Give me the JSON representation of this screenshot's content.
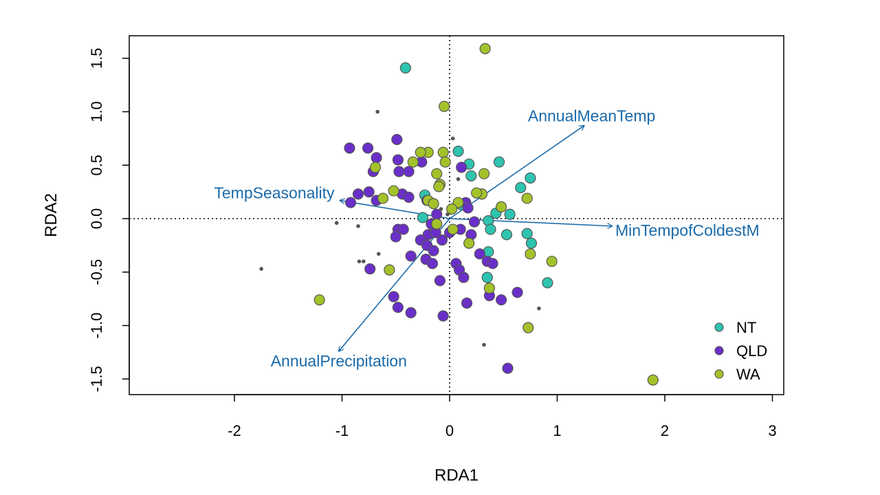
{
  "chart_data": {
    "type": "scatter",
    "subtype": "rda-biplot",
    "title": "",
    "xlabel": "RDA1",
    "ylabel": "RDA2",
    "xlim": [
      -3.0,
      3.1
    ],
    "ylim": [
      -1.65,
      1.72
    ],
    "xticks": [
      -2,
      -1,
      0,
      1,
      2,
      3
    ],
    "yticks": [
      -1.5,
      -1.0,
      -0.5,
      0.0,
      0.5,
      1.0,
      1.5
    ],
    "xtick_labels": [
      "-2",
      "-1",
      "0",
      "1",
      "2",
      "3"
    ],
    "ytick_labels": [
      "-1.5",
      "-1.0",
      "-0.5",
      "0.0",
      "0.5",
      "1.0",
      "1.5"
    ],
    "grid": false,
    "reference_lines": "dotted lines at x=0 and y=0",
    "legend_position": "bottom-right",
    "colors": {
      "NT": "#2ec4b0",
      "QLD": "#6a2fc8",
      "WA": "#a3c22a",
      "vectors": "#1a6aaa",
      "species": "#555555",
      "point_outline": "#555555"
    },
    "series": [
      {
        "name": "NT",
        "points": [
          [
            -0.41,
            1.41
          ],
          [
            0.08,
            0.63
          ],
          [
            0.18,
            0.51
          ],
          [
            0.2,
            0.4
          ],
          [
            0.46,
            0.53
          ],
          [
            0.66,
            0.29
          ],
          [
            0.75,
            0.38
          ],
          [
            -0.23,
            0.22
          ],
          [
            -0.25,
            0.01
          ],
          [
            0.36,
            -0.02
          ],
          [
            0.38,
            -0.1
          ],
          [
            0.43,
            0.05
          ],
          [
            0.56,
            0.04
          ],
          [
            0.53,
            -0.15
          ],
          [
            0.72,
            -0.14
          ],
          [
            0.76,
            -0.23
          ],
          [
            0.36,
            -0.31
          ],
          [
            0.35,
            -0.55
          ],
          [
            0.91,
            -0.6
          ],
          [
            0.11,
            0.13
          ]
        ]
      },
      {
        "name": "QLD",
        "points": [
          [
            -0.93,
            0.66
          ],
          [
            -0.76,
            0.66
          ],
          [
            -0.49,
            0.74
          ],
          [
            -0.68,
            0.57
          ],
          [
            -0.48,
            0.55
          ],
          [
            -0.26,
            0.53
          ],
          [
            -0.47,
            0.44
          ],
          [
            -0.38,
            0.44
          ],
          [
            -0.71,
            0.44
          ],
          [
            0.11,
            0.48
          ],
          [
            -0.85,
            0.23
          ],
          [
            -0.75,
            0.25
          ],
          [
            -0.44,
            0.23
          ],
          [
            -0.68,
            0.17
          ],
          [
            -0.38,
            0.2
          ],
          [
            -0.21,
            0.17
          ],
          [
            -0.12,
            0.04
          ],
          [
            -0.92,
            0.15
          ],
          [
            -0.48,
            -0.1
          ],
          [
            -0.43,
            -0.1
          ],
          [
            -0.5,
            -0.17
          ],
          [
            -0.2,
            -0.15
          ],
          [
            -0.13,
            -0.13
          ],
          [
            -0.07,
            -0.2
          ],
          [
            -0.27,
            -0.2
          ],
          [
            -0.21,
            -0.25
          ],
          [
            -0.15,
            -0.3
          ],
          [
            -0.36,
            -0.35
          ],
          [
            -0.22,
            -0.38
          ],
          [
            -0.16,
            -0.42
          ],
          [
            0.06,
            -0.42
          ],
          [
            0.09,
            -0.48
          ],
          [
            0.13,
            -0.55
          ],
          [
            -0.09,
            -0.58
          ],
          [
            0.0,
            -0.13
          ],
          [
            0.1,
            -0.1
          ],
          [
            0.2,
            -0.15
          ],
          [
            0.23,
            -0.03
          ],
          [
            0.15,
            0.15
          ],
          [
            0.17,
            0.1
          ],
          [
            0.28,
            -0.33
          ],
          [
            0.35,
            -0.4
          ],
          [
            0.4,
            -0.42
          ],
          [
            -0.74,
            -0.47
          ],
          [
            -0.52,
            -0.73
          ],
          [
            -0.48,
            -0.83
          ],
          [
            -0.36,
            -0.88
          ],
          [
            -0.06,
            -0.91
          ],
          [
            0.37,
            -0.72
          ],
          [
            0.48,
            -0.76
          ],
          [
            0.63,
            -0.69
          ],
          [
            0.54,
            -1.4
          ],
          [
            0.16,
            -0.79
          ],
          [
            -0.17,
            -0.05
          ]
        ]
      },
      {
        "name": "WA",
        "points": [
          [
            0.33,
            1.59
          ],
          [
            -0.05,
            1.05
          ],
          [
            -0.2,
            0.62
          ],
          [
            -0.06,
            0.62
          ],
          [
            -0.04,
            0.53
          ],
          [
            -0.34,
            0.53
          ],
          [
            -0.69,
            0.48
          ],
          [
            -0.12,
            0.42
          ],
          [
            -0.09,
            0.32
          ],
          [
            -0.1,
            0.3
          ],
          [
            0.32,
            0.42
          ],
          [
            -0.52,
            0.26
          ],
          [
            -0.62,
            0.19
          ],
          [
            -0.2,
            0.17
          ],
          [
            -0.15,
            0.14
          ],
          [
            0.08,
            0.15
          ],
          [
            0.3,
            0.23
          ],
          [
            0.25,
            0.24
          ],
          [
            0.72,
            0.19
          ],
          [
            0.48,
            0.11
          ],
          [
            0.02,
            0.09
          ],
          [
            -0.12,
            -0.05
          ],
          [
            0.03,
            -0.1
          ],
          [
            0.18,
            -0.23
          ],
          [
            -0.56,
            -0.48
          ],
          [
            0.37,
            -0.65
          ],
          [
            0.75,
            -0.33
          ],
          [
            0.95,
            -0.4
          ],
          [
            0.73,
            -1.02
          ],
          [
            -1.21,
            -0.76
          ],
          [
            1.89,
            -1.51
          ],
          [
            -0.27,
            0.62
          ]
        ]
      }
    ],
    "species_points": [
      [
        -0.67,
        1.0
      ],
      [
        0.03,
        0.75
      ],
      [
        -1.05,
        -0.04
      ],
      [
        -0.85,
        -0.07
      ],
      [
        -1.75,
        -0.47
      ],
      [
        -0.84,
        -0.4
      ],
      [
        -0.8,
        -0.4
      ],
      [
        -0.66,
        -0.33
      ],
      [
        0.32,
        -1.18
      ],
      [
        0.83,
        -0.84
      ],
      [
        0.08,
        0.37
      ],
      [
        -0.26,
        0.65
      ],
      [
        -0.08,
        0.09
      ],
      [
        -0.02,
        0.04
      ]
    ],
    "biplot_arrows": [
      {
        "label": "AnnualMeanTemp",
        "end": [
          1.25,
          0.87
        ],
        "label_pos": [
          1.32,
          0.96
        ],
        "anchor": "middle"
      },
      {
        "label": "TempSeasonality",
        "end": [
          -1.02,
          0.17
        ],
        "label_pos": [
          -1.07,
          0.24
        ],
        "anchor": "end"
      },
      {
        "label": "MinTempofColdestM",
        "end": [
          1.51,
          -0.07
        ],
        "label_pos": [
          1.54,
          -0.11
        ],
        "anchor": "start"
      },
      {
        "label": "AnnualPrecipitation",
        "end": [
          -1.03,
          -1.24
        ],
        "label_pos": [
          -1.03,
          -1.33
        ],
        "anchor": "middle"
      }
    ],
    "legend": [
      {
        "label": "NT",
        "color_key": "NT"
      },
      {
        "label": "QLD",
        "color_key": "QLD"
      },
      {
        "label": "WA",
        "color_key": "WA"
      }
    ]
  }
}
